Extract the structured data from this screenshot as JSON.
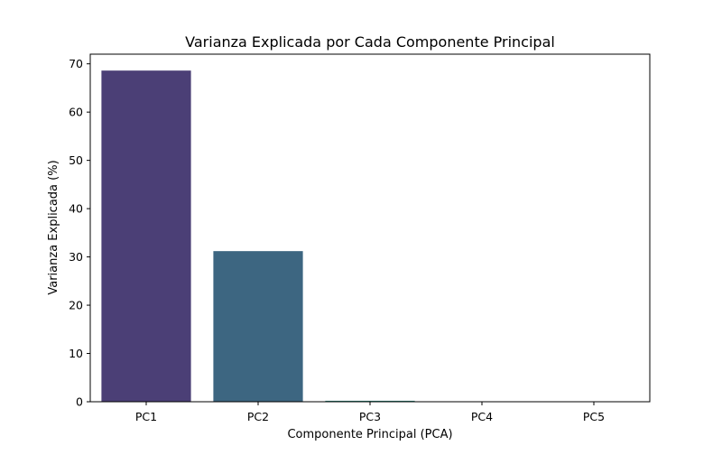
{
  "chart_data": {
    "type": "bar",
    "title": "Varianza Explicada por Cada Componente Principal",
    "xlabel": "Componente Principal (PCA)",
    "ylabel": "Varianza Explicada (%)",
    "categories": [
      "PC1",
      "PC2",
      "PC3",
      "PC4",
      "PC5"
    ],
    "values": [
      68.6,
      31.2,
      0.2,
      0.0,
      0.0
    ],
    "colors": [
      "#4b3f76",
      "#3d6681",
      "#2f8a7c",
      "#34a86c",
      "#6cc35b"
    ],
    "yticks": [
      0,
      10,
      20,
      30,
      40,
      50,
      60,
      70
    ],
    "ylim": [
      0,
      72
    ],
    "grid": false,
    "legend": "none"
  }
}
